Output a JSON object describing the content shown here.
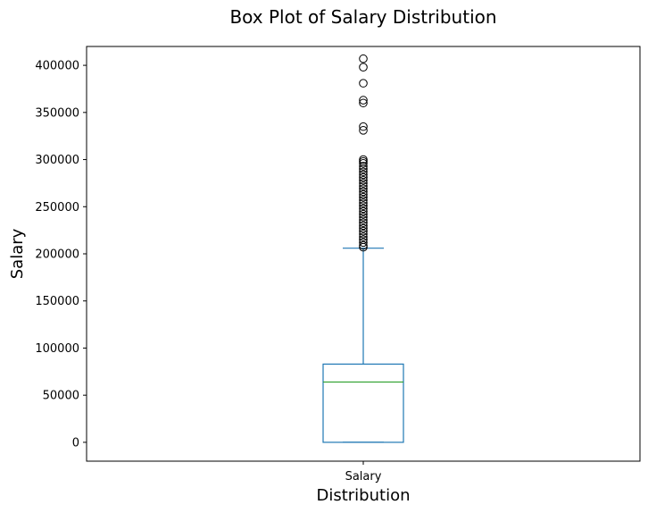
{
  "chart_data": {
    "type": "box",
    "title": "Box Plot of Salary Distribution",
    "xlabel": "Distribution",
    "ylabel": "Salary",
    "categories": [
      "Salary"
    ],
    "ylim": [
      -20000,
      420000
    ],
    "yticks": [
      0,
      50000,
      100000,
      150000,
      200000,
      250000,
      300000,
      350000,
      400000
    ],
    "ytick_labels": [
      "0",
      "50000",
      "100000",
      "150000",
      "200000",
      "250000",
      "300000",
      "350000",
      "400000"
    ],
    "box": {
      "whisker_low": 0,
      "q1": 0,
      "median": 64000,
      "q3": 83000,
      "whisker_high": 206000
    },
    "outliers": [
      407000,
      398000,
      381000,
      363000,
      360000,
      335000,
      331000,
      300000,
      298000,
      296000,
      293000,
      290000,
      287000,
      284000,
      281000,
      278000,
      275000,
      272000,
      269000,
      266000,
      263000,
      260000,
      257000,
      254000,
      251000,
      248000,
      245000,
      242000,
      239000,
      236000,
      233000,
      230000,
      227000,
      224000,
      221000,
      218000,
      215000,
      212000,
      209000,
      207000
    ],
    "colors": {
      "box": "#1f77b4",
      "median": "#2ca02c",
      "outlier": "#000000"
    }
  }
}
